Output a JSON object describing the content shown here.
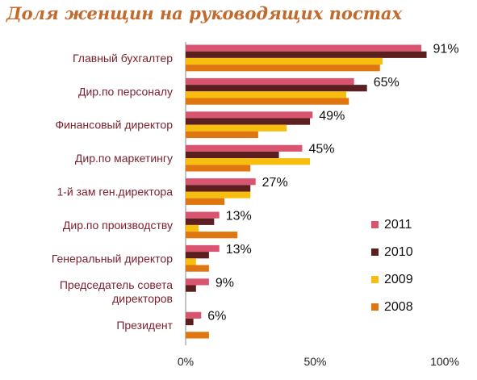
{
  "chart_data": {
    "type": "bar",
    "orientation": "horizontal",
    "title": "Доля женщин на руководящих постах",
    "categories": [
      "Главный бухгалтер",
      "Дир.по персоналу",
      "Финансовый директор",
      "Дир.по маркетингу",
      "1-й зам ген.директора",
      "Дир.по производству",
      "Генеральный директор",
      "Председатель совета директоров",
      "Президент"
    ],
    "category_lines": [
      [
        "Главный бухгалтер"
      ],
      [
        "Дир.по персоналу"
      ],
      [
        "Финансовый директор"
      ],
      [
        "Дир.по маркетингу"
      ],
      [
        "1-й зам ген.директора"
      ],
      [
        "Дир.по производству"
      ],
      [
        "Генеральный директор"
      ],
      [
        "Председатель совета",
        "директоров"
      ],
      [
        "Президент"
      ]
    ],
    "series": [
      {
        "name": "2011",
        "color": "#d9546e",
        "values": [
          91,
          65,
          49,
          45,
          27,
          13,
          13,
          9,
          6
        ]
      },
      {
        "name": "2010",
        "color": "#5c1f1f",
        "values": [
          93,
          70,
          48,
          36,
          25,
          11,
          9,
          4,
          3
        ]
      },
      {
        "name": "2009",
        "color": "#f7be10",
        "values": [
          76,
          62,
          39,
          48,
          25,
          5,
          4,
          0,
          0
        ]
      },
      {
        "name": "2008",
        "color": "#e0760f",
        "values": [
          75,
          63,
          28,
          25,
          15,
          20,
          9,
          0,
          9
        ]
      }
    ],
    "data_labels": [
      "91%",
      "65%",
      "49%",
      "45%",
      "27%",
      "13%",
      "13%",
      "9%",
      "6%"
    ],
    "x_ticks": [
      "0%",
      "50%",
      "100%"
    ],
    "xlim": [
      0,
      100
    ],
    "grid": false,
    "legend_position": "bottom-right",
    "title_color": "#c2692c",
    "category_label_color": "#7a1f2b"
  }
}
